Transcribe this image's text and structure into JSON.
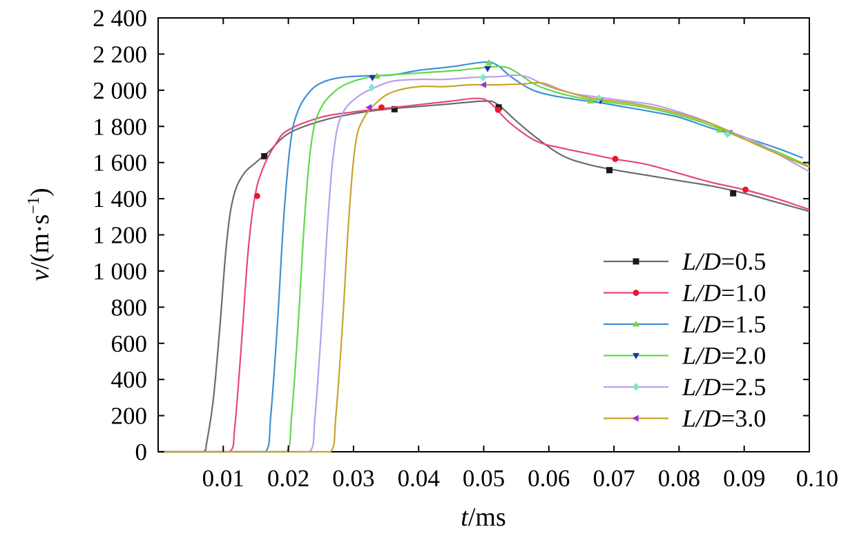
{
  "chart_data": {
    "type": "line",
    "title": "",
    "xlabel": {
      "var": "t",
      "unit": "/ms"
    },
    "ylabel": {
      "var": "v",
      "unit_prefix": "/(m·s",
      "unit_sup": "−1",
      "unit_suffix": ")"
    },
    "xlim": [
      0,
      0.1
    ],
    "ylim": [
      0,
      2400
    ],
    "xticks": [
      0.01,
      0.02,
      0.03,
      0.04,
      0.05,
      0.06,
      0.07,
      0.08,
      0.09,
      0.1
    ],
    "xtick_labels": [
      "0.01",
      "0.02",
      "0.03",
      "0.04",
      "0.05",
      "0.06",
      "0.07",
      "0.08",
      "0.09",
      "0.10"
    ],
    "yticks": [
      0,
      200,
      400,
      600,
      800,
      1000,
      1200,
      1400,
      1600,
      1800,
      2000,
      2200,
      2400
    ],
    "ytick_labels": [
      "0",
      "200",
      "400",
      "600",
      "800",
      "1 000",
      "1 200",
      "1 400",
      "1 600",
      "1 800",
      "2 000",
      "2 200",
      "2 400"
    ],
    "grid": false,
    "legend_position": "bottom-right",
    "series": [
      {
        "name": "L/D=0.5",
        "legend_var": "L/D",
        "legend_value": "=0.5",
        "color": "#6b6b6b",
        "marker": "square",
        "marker_color": "#1a1a1a",
        "x": [
          0.0,
          0.0069,
          0.0075,
          0.0085,
          0.0095,
          0.0105,
          0.0115,
          0.013,
          0.015,
          0.017,
          0.02,
          0.025,
          0.03,
          0.035,
          0.04,
          0.045,
          0.05,
          0.052,
          0.055,
          0.058,
          0.062,
          0.066,
          0.07,
          0.075,
          0.08,
          0.085,
          0.09,
          0.095,
          0.1
        ],
        "y": [
          0,
          0,
          60,
          300,
          700,
          1150,
          1400,
          1530,
          1600,
          1660,
          1760,
          1830,
          1870,
          1895,
          1910,
          1925,
          1940,
          1925,
          1830,
          1740,
          1640,
          1590,
          1560,
          1530,
          1500,
          1470,
          1430,
          1380,
          1330
        ],
        "marker_x": [
          0.0163,
          0.0363,
          0.0523,
          0.0693,
          0.0883
        ],
        "marker_y": [
          1635,
          1895,
          1905,
          1558,
          1430
        ]
      },
      {
        "name": "L/D=1.0",
        "legend_var": "L/D",
        "legend_value": "=1.0",
        "color": "#e8467c",
        "marker": "circle",
        "marker_color": "#e8172e",
        "x": [
          0.0,
          0.011,
          0.0118,
          0.0128,
          0.0138,
          0.0148,
          0.016,
          0.018,
          0.02,
          0.025,
          0.03,
          0.035,
          0.04,
          0.045,
          0.049,
          0.051,
          0.054,
          0.058,
          0.062,
          0.066,
          0.07,
          0.075,
          0.08,
          0.085,
          0.09,
          0.095,
          0.1
        ],
        "y": [
          0,
          0,
          150,
          600,
          1100,
          1400,
          1560,
          1700,
          1780,
          1850,
          1880,
          1900,
          1920,
          1940,
          1955,
          1930,
          1820,
          1720,
          1680,
          1650,
          1620,
          1590,
          1540,
          1490,
          1450,
          1400,
          1340
        ],
        "marker_x": [
          0.0152,
          0.0343,
          0.0522,
          0.0702,
          0.0902
        ],
        "marker_y": [
          1415,
          1905,
          1892,
          1620,
          1450
        ]
      },
      {
        "name": "L/D=1.5",
        "legend_var": "L/D",
        "legend_value": "=1.5",
        "color": "#3d8fd6",
        "marker": "triangle-up",
        "marker_color": "#7fd63a",
        "x": [
          0.0,
          0.0165,
          0.0173,
          0.0183,
          0.0193,
          0.0203,
          0.0213,
          0.023,
          0.025,
          0.028,
          0.032,
          0.036,
          0.04,
          0.045,
          0.05,
          0.052,
          0.054,
          0.057,
          0.06,
          0.064,
          0.068,
          0.072,
          0.076,
          0.08,
          0.085,
          0.09,
          0.095,
          0.099
        ],
        "y": [
          0,
          0,
          200,
          700,
          1300,
          1700,
          1870,
          1980,
          2040,
          2070,
          2080,
          2085,
          2110,
          2130,
          2155,
          2140,
          2080,
          2010,
          1975,
          1950,
          1930,
          1905,
          1880,
          1850,
          1790,
          1740,
          1680,
          1625
        ],
        "marker_x": [
          0.0336,
          0.0508,
          0.0664,
          0.0862
        ],
        "marker_y": [
          2078,
          2152,
          1940,
          1780
        ]
      },
      {
        "name": "L/D=2.0",
        "legend_var": "L/D",
        "legend_value": "=2.0",
        "color": "#5fd94a",
        "marker": "triangle-down",
        "marker_color": "#1a2fb0",
        "x": [
          0.0,
          0.0197,
          0.0205,
          0.0215,
          0.0225,
          0.0235,
          0.0247,
          0.027,
          0.03,
          0.034,
          0.038,
          0.042,
          0.046,
          0.05,
          0.053,
          0.055,
          0.058,
          0.062,
          0.066,
          0.07,
          0.074,
          0.078,
          0.082,
          0.086,
          0.09,
          0.095,
          0.1
        ],
        "y": [
          0,
          0,
          200,
          700,
          1300,
          1700,
          1880,
          1990,
          2050,
          2080,
          2090,
          2100,
          2110,
          2125,
          2130,
          2100,
          2030,
          1980,
          1950,
          1930,
          1910,
          1880,
          1840,
          1790,
          1730,
          1660,
          1580
        ],
        "marker_x": [
          0.0329,
          0.0506,
          0.0679,
          0.0877
        ],
        "marker_y": [
          2070,
          2120,
          1942,
          1765
        ]
      },
      {
        "name": "L/D=2.5",
        "legend_var": "L/D",
        "legend_value": "=2.5",
        "color": "#b99df0",
        "marker": "diamond",
        "marker_color": "#7ee8c8",
        "x": [
          0.0,
          0.0233,
          0.0241,
          0.0251,
          0.0261,
          0.0271,
          0.0283,
          0.0305,
          0.033,
          0.036,
          0.04,
          0.044,
          0.048,
          0.052,
          0.056,
          0.06,
          0.064,
          0.068,
          0.072,
          0.076,
          0.08,
          0.084,
          0.088,
          0.092,
          0.096,
          0.1
        ],
        "y": [
          0,
          0,
          200,
          700,
          1300,
          1700,
          1870,
          1960,
          2010,
          2050,
          2060,
          2060,
          2070,
          2075,
          2080,
          2020,
          1980,
          1960,
          1940,
          1920,
          1880,
          1830,
          1770,
          1710,
          1630,
          1550
        ],
        "marker_x": [
          0.0328,
          0.0499,
          0.0677,
          0.0874
        ],
        "marker_y": [
          2015,
          2070,
          1955,
          1758
        ]
      },
      {
        "name": "L/D=3.0",
        "legend_var": "L/D",
        "legend_value": "=3.0",
        "color": "#c9a227",
        "marker": "triangle-left",
        "marker_color": "#9a2ee0",
        "x": [
          0.0,
          0.0265,
          0.0273,
          0.0283,
          0.0293,
          0.0303,
          0.0315,
          0.0335,
          0.036,
          0.04,
          0.044,
          0.048,
          0.052,
          0.056,
          0.059,
          0.062,
          0.066,
          0.07,
          0.074,
          0.078,
          0.082,
          0.086,
          0.09,
          0.095,
          0.1
        ],
        "y": [
          0,
          0,
          200,
          700,
          1300,
          1700,
          1840,
          1930,
          1990,
          2020,
          2020,
          2030,
          2030,
          2035,
          2040,
          2000,
          1960,
          1940,
          1920,
          1890,
          1850,
          1800,
          1730,
          1650,
          1575
        ],
        "marker_x": [
          0.0324,
          0.05
        ],
        "marker_y": [
          1905,
          2030
        ]
      }
    ]
  }
}
